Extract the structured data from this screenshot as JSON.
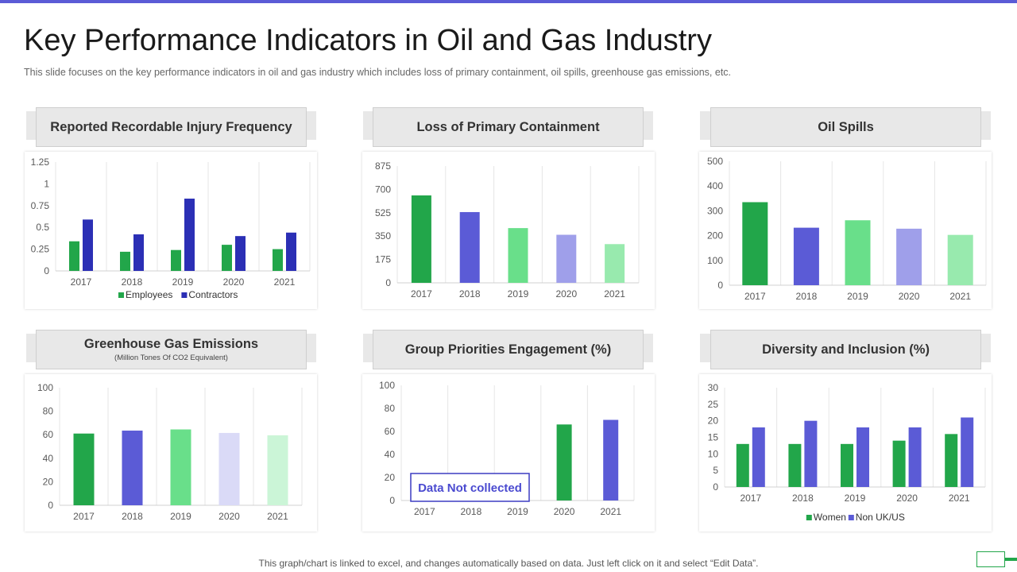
{
  "title": "Key Performance Indicators in Oil and Gas Industry",
  "subtitle": "This slide focuses on the key performance  indicators in oil and gas industry which includes loss of primary containment, oil spills, greenhouse  gas emissions, etc.",
  "footer": "This graph/chart is linked to excel,  and changes automatically based on data. Just left click on it and select “Edit Data”.",
  "chart_data": [
    {
      "type": "bar",
      "title": "Reported Recordable Injury Frequency",
      "categories": [
        "2017",
        "2018",
        "2019",
        "2020",
        "2021"
      ],
      "yticks": [
        "0",
        "0.25",
        "0.5",
        "0.75",
        "1",
        "1.25"
      ],
      "ylim": [
        0,
        1.25
      ],
      "series": [
        {
          "name": "Employees",
          "values": [
            0.34,
            0.22,
            0.24,
            0.3,
            0.25
          ],
          "color": "#22a64a"
        },
        {
          "name": "Contractors",
          "values": [
            0.59,
            0.42,
            0.83,
            0.4,
            0.44
          ],
          "color": "#2b2fb5"
        }
      ],
      "legend": "bottom",
      "grid": "vertical"
    },
    {
      "type": "bar",
      "title": "Loss of Primary Containment",
      "categories": [
        "2017",
        "2018",
        "2019",
        "2020",
        "2021"
      ],
      "yticks": [
        "0",
        "175",
        "350",
        "525",
        "700",
        "875"
      ],
      "ylim": [
        0,
        875
      ],
      "values": [
        655,
        530,
        410,
        360,
        290
      ],
      "colors": [
        "#22a64a",
        "#5b5bd6",
        "#69df8a",
        "#9f9fea",
        "#98eaae"
      ],
      "grid": "vertical"
    },
    {
      "type": "bar",
      "title": "Oil Spills",
      "categories": [
        "2017",
        "2018",
        "2019",
        "2020",
        "2021"
      ],
      "yticks": [
        "0",
        "100",
        "200",
        "300",
        "400",
        "500"
      ],
      "ylim": [
        0,
        500
      ],
      "values": [
        335,
        232,
        262,
        228,
        203
      ],
      "colors": [
        "#22a64a",
        "#5b5bd6",
        "#69df8a",
        "#9f9fea",
        "#98eaae"
      ],
      "grid": "vertical"
    },
    {
      "type": "bar",
      "title": "Greenhouse Gas Emissions",
      "subtitle": "(Million  Tones Of CO2 Equivalent)",
      "categories": [
        "2017",
        "2018",
        "2019",
        "2020",
        "2021"
      ],
      "yticks": [
        "0",
        "20",
        "40",
        "60",
        "80",
        "100"
      ],
      "ylim": [
        0,
        100
      ],
      "values": [
        61,
        63.5,
        64.5,
        61.5,
        59.5
      ],
      "colors": [
        "#22a64a",
        "#5b5bd6",
        "#69df8a",
        "#dadaf7",
        "#cbf5d7"
      ],
      "grid": "vertical"
    },
    {
      "type": "bar",
      "title": "Group Priorities Engagement (%)",
      "categories": [
        "2017",
        "2018",
        "2019",
        "2020",
        "2021"
      ],
      "yticks": [
        "0",
        "20",
        "40",
        "60",
        "80",
        "100"
      ],
      "ylim": [
        0,
        100
      ],
      "values": [
        null,
        null,
        null,
        66,
        70
      ],
      "colors": [
        "#22a64a",
        "#5b5bd6",
        "#69df8a",
        "#22a64a",
        "#5b5bd6"
      ],
      "annotation": "Data Not collected",
      "grid": "vertical"
    },
    {
      "type": "bar",
      "title": "Diversity and Inclusion (%)",
      "categories": [
        "2017",
        "2018",
        "2019",
        "2020",
        "2021"
      ],
      "yticks": [
        "0",
        "5",
        "10",
        "15",
        "20",
        "25",
        "30"
      ],
      "ylim": [
        0,
        30
      ],
      "series": [
        {
          "name": "Women",
          "values": [
            13,
            13,
            13,
            14,
            16
          ],
          "color": "#22a64a"
        },
        {
          "name": "Non UK/US",
          "values": [
            18,
            20,
            18,
            18,
            21
          ],
          "color": "#5b5bd6"
        }
      ],
      "legend": "bottom",
      "grid": "vertical"
    }
  ]
}
